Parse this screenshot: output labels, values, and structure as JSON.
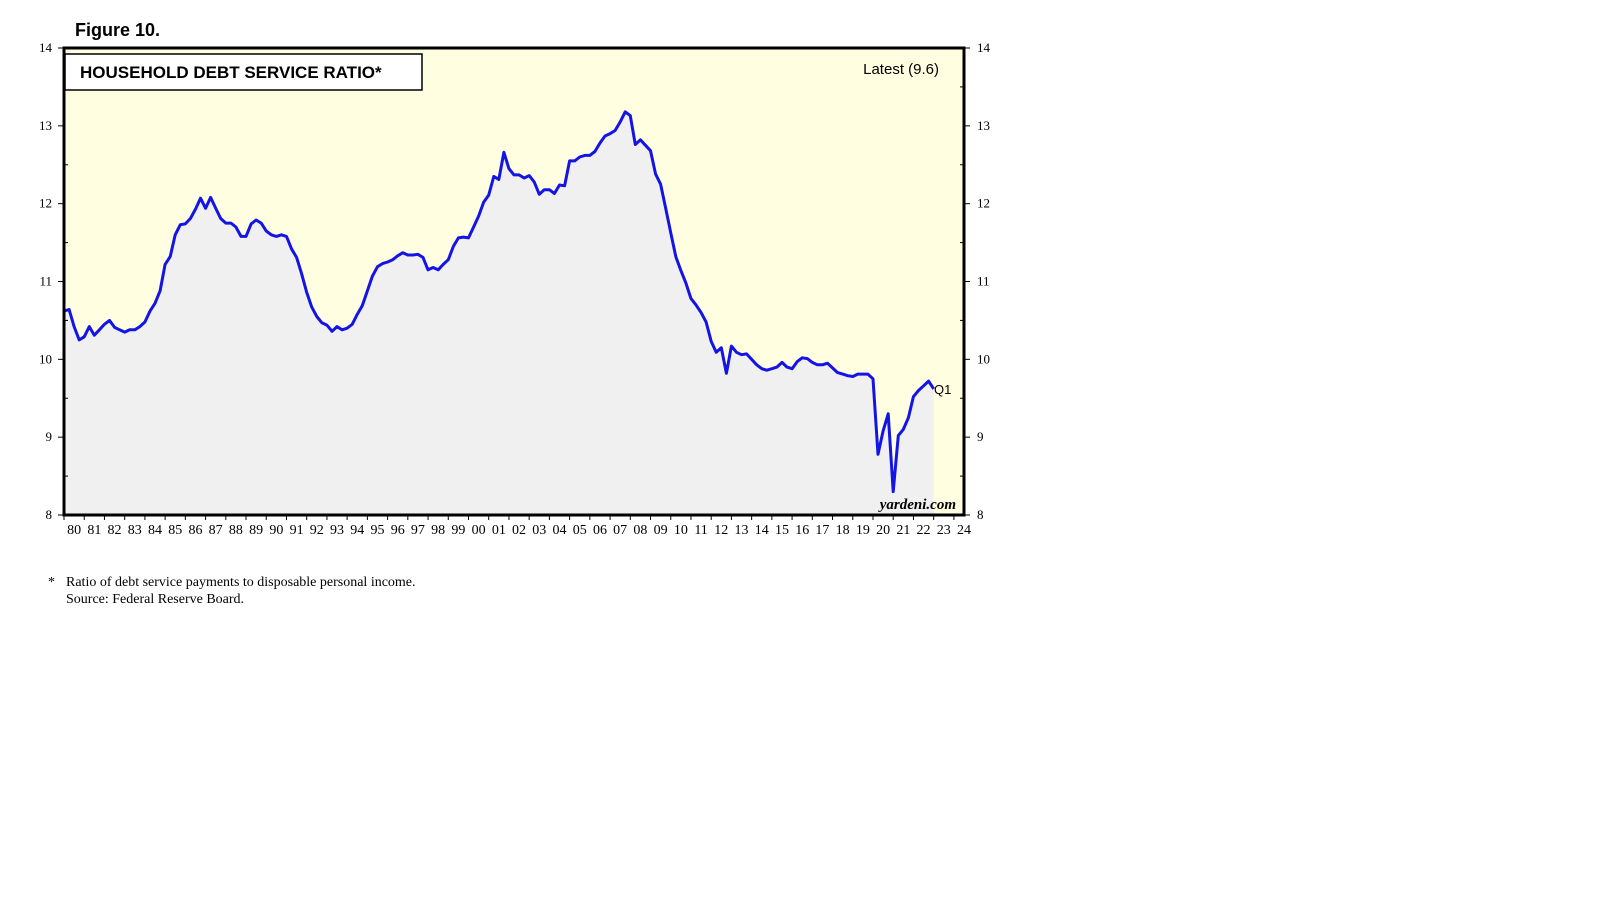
{
  "figure_label": "Figure 10.",
  "footnote": {
    "marker": "*",
    "note": "Ratio of debt service payments to disposable personal income.",
    "source": "Source: Federal Reserve Board."
  },
  "colors": {
    "plot_background": "#fffee0",
    "area_fill": "#f0f0f0",
    "line": "#1414e6",
    "frame": "#000000"
  },
  "chart_data": {
    "type": "line",
    "title": "HOUSEHOLD DEBT SERVICE RATIO*",
    "latest_label": "Latest (9.6)",
    "end_label": "Q1",
    "watermark": "yardeni.com",
    "xlabel": "",
    "ylabel": "",
    "ylim": [
      8,
      14
    ],
    "xlim": [
      1980,
      2024.5
    ],
    "y_ticks": [
      8,
      9,
      10,
      11,
      12,
      13,
      14
    ],
    "x_tick_labels": [
      "80",
      "81",
      "82",
      "83",
      "84",
      "85",
      "86",
      "87",
      "88",
      "89",
      "90",
      "91",
      "92",
      "93",
      "94",
      "95",
      "96",
      "97",
      "98",
      "99",
      "00",
      "01",
      "02",
      "03",
      "04",
      "05",
      "06",
      "07",
      "08",
      "09",
      "10",
      "11",
      "12",
      "13",
      "14",
      "15",
      "16",
      "17",
      "18",
      "19",
      "20",
      "21",
      "22",
      "23",
      "24"
    ],
    "grid": false,
    "series": [
      {
        "name": "",
        "x": [
          1980.0,
          1980.25,
          1980.5,
          1980.75,
          1981.0,
          1981.25,
          1981.5,
          1981.75,
          1982.0,
          1982.25,
          1982.5,
          1982.75,
          1983.0,
          1983.25,
          1983.5,
          1983.75,
          1984.0,
          1984.25,
          1984.5,
          1984.75,
          1985.0,
          1985.25,
          1985.5,
          1985.75,
          1986.0,
          1986.25,
          1986.5,
          1986.75,
          1987.0,
          1987.25,
          1987.5,
          1987.75,
          1988.0,
          1988.25,
          1988.5,
          1988.75,
          1989.0,
          1989.25,
          1989.5,
          1989.75,
          1990.0,
          1990.25,
          1990.5,
          1990.75,
          1991.0,
          1991.25,
          1991.5,
          1991.75,
          1992.0,
          1992.25,
          1992.5,
          1992.75,
          1993.0,
          1993.25,
          1993.5,
          1993.75,
          1994.0,
          1994.25,
          1994.5,
          1994.75,
          1995.0,
          1995.25,
          1995.5,
          1995.75,
          1996.0,
          1996.25,
          1996.5,
          1996.75,
          1997.0,
          1997.25,
          1997.5,
          1997.75,
          1998.0,
          1998.25,
          1998.5,
          1998.75,
          1999.0,
          1999.25,
          1999.5,
          1999.75,
          2000.0,
          2000.25,
          2000.5,
          2000.75,
          2001.0,
          2001.25,
          2001.5,
          2001.75,
          2002.0,
          2002.25,
          2002.5,
          2002.75,
          2003.0,
          2003.25,
          2003.5,
          2003.75,
          2004.0,
          2004.25,
          2004.5,
          2004.75,
          2005.0,
          2005.25,
          2005.5,
          2005.75,
          2006.0,
          2006.25,
          2006.5,
          2006.75,
          2007.0,
          2007.25,
          2007.5,
          2007.75,
          2008.0,
          2008.25,
          2008.5,
          2008.75,
          2009.0,
          2009.25,
          2009.5,
          2009.75,
          2010.0,
          2010.25,
          2010.5,
          2010.75,
          2011.0,
          2011.25,
          2011.5,
          2011.75,
          2012.0,
          2012.25,
          2012.5,
          2012.75,
          2013.0,
          2013.25,
          2013.5,
          2013.75,
          2014.0,
          2014.25,
          2014.5,
          2014.75,
          2015.0,
          2015.25,
          2015.5,
          2015.75,
          2016.0,
          2016.25,
          2016.5,
          2016.75,
          2017.0,
          2017.25,
          2017.5,
          2017.75,
          2018.0,
          2018.25,
          2018.5,
          2018.75,
          2019.0,
          2019.25,
          2019.5,
          2019.75,
          2020.0,
          2020.25,
          2020.5,
          2020.75,
          2021.0,
          2021.25,
          2021.5,
          2021.75,
          2022.0,
          2022.25,
          2022.5,
          2022.75,
          2023.0
        ],
        "values": [
          10.62,
          10.64,
          10.42,
          10.25,
          10.29,
          10.42,
          10.31,
          10.38,
          10.45,
          10.5,
          10.41,
          10.38,
          10.35,
          10.38,
          10.38,
          10.42,
          10.48,
          10.62,
          10.72,
          10.88,
          11.22,
          11.32,
          11.6,
          11.73,
          11.74,
          11.81,
          11.93,
          12.07,
          11.94,
          12.08,
          11.94,
          11.81,
          11.75,
          11.75,
          11.7,
          11.58,
          11.58,
          11.74,
          11.79,
          11.75,
          11.65,
          11.6,
          11.58,
          11.6,
          11.58,
          11.42,
          11.31,
          11.1,
          10.86,
          10.67,
          10.55,
          10.47,
          10.44,
          10.36,
          10.42,
          10.38,
          10.4,
          10.45,
          10.58,
          10.69,
          10.88,
          11.07,
          11.19,
          11.23,
          11.25,
          11.28,
          11.33,
          11.37,
          11.34,
          11.34,
          11.35,
          11.31,
          11.15,
          11.18,
          11.15,
          11.22,
          11.28,
          11.45,
          11.56,
          11.57,
          11.56,
          11.7,
          11.84,
          12.02,
          12.11,
          12.35,
          12.31,
          12.66,
          12.45,
          12.37,
          12.37,
          12.33,
          12.36,
          12.28,
          12.12,
          12.18,
          12.18,
          12.13,
          12.24,
          12.23,
          12.55,
          12.55,
          12.6,
          12.62,
          12.62,
          12.67,
          12.78,
          12.87,
          12.9,
          12.94,
          13.05,
          13.18,
          13.13,
          12.76,
          12.82,
          12.75,
          12.68,
          12.38,
          12.25,
          11.94,
          11.63,
          11.32,
          11.14,
          10.98,
          10.78,
          10.7,
          10.6,
          10.48,
          10.23,
          10.09,
          10.15,
          9.82,
          10.17,
          10.09,
          10.06,
          10.07,
          10.0,
          9.93,
          9.88,
          9.86,
          9.88,
          9.9,
          9.96,
          9.9,
          9.88,
          9.97,
          10.02,
          10.01,
          9.96,
          9.93,
          9.93,
          9.95,
          9.89,
          9.83,
          9.81,
          9.79,
          9.78,
          9.81,
          9.81,
          9.81,
          9.75,
          8.78,
          9.08,
          9.3,
          8.3,
          9.02,
          9.1,
          9.25,
          9.52,
          9.6,
          9.66,
          9.72,
          9.62
        ]
      }
    ]
  }
}
